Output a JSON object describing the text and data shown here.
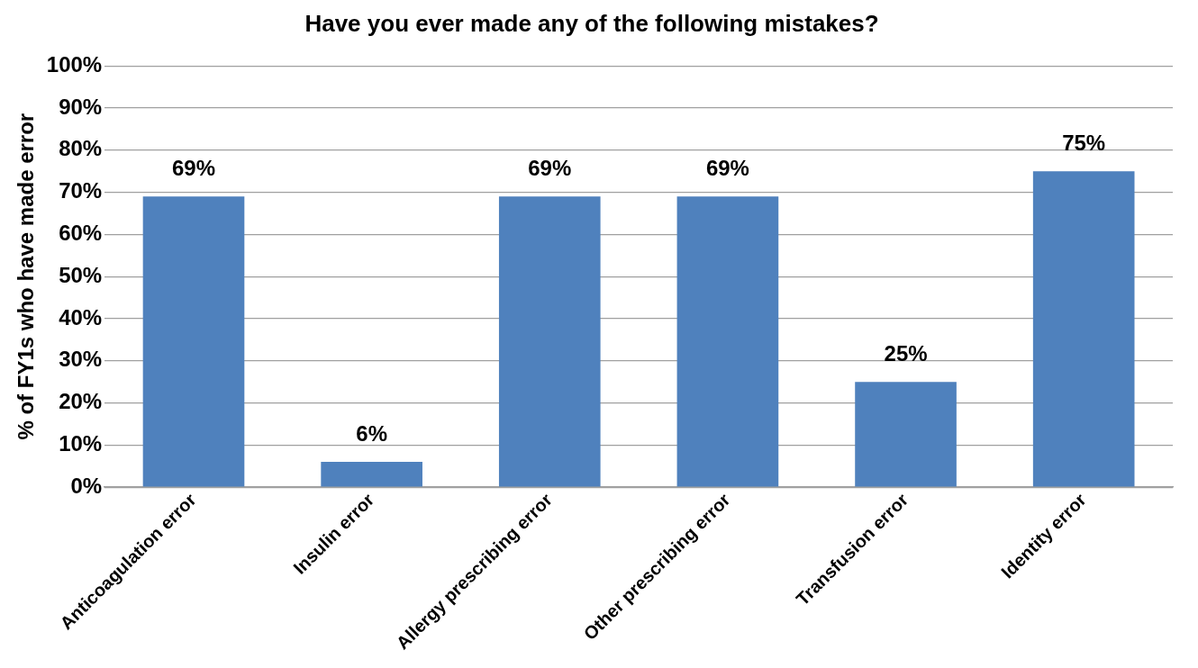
{
  "chart_data": {
    "type": "bar",
    "title": "Have you ever made any of the following mistakes?",
    "ylabel": "% of FY1s who have made error",
    "categories": [
      "Anticoagulation error",
      "Insulin error",
      "Allergy prescribing error",
      "Other prescribing error",
      "Transfusion error",
      "Identity error"
    ],
    "values": [
      69,
      6,
      69,
      69,
      25,
      75
    ],
    "value_labels": [
      "69%",
      "6%",
      "69%",
      "69%",
      "25%",
      "75%"
    ],
    "color": "#4f81bd",
    "ylim": [
      0,
      100
    ],
    "yticks": [
      {
        "value": 0,
        "label": "0%"
      },
      {
        "value": 10,
        "label": "10%"
      },
      {
        "value": 20,
        "label": "20%"
      },
      {
        "value": 30,
        "label": "30%"
      },
      {
        "value": 40,
        "label": "40%"
      },
      {
        "value": 50,
        "label": "50%"
      },
      {
        "value": 60,
        "label": "60%"
      },
      {
        "value": 70,
        "label": "70%"
      },
      {
        "value": 80,
        "label": "80%"
      },
      {
        "value": 90,
        "label": "90%"
      },
      {
        "value": 100,
        "label": "100%"
      }
    ],
    "grid": "y",
    "legend": false
  }
}
